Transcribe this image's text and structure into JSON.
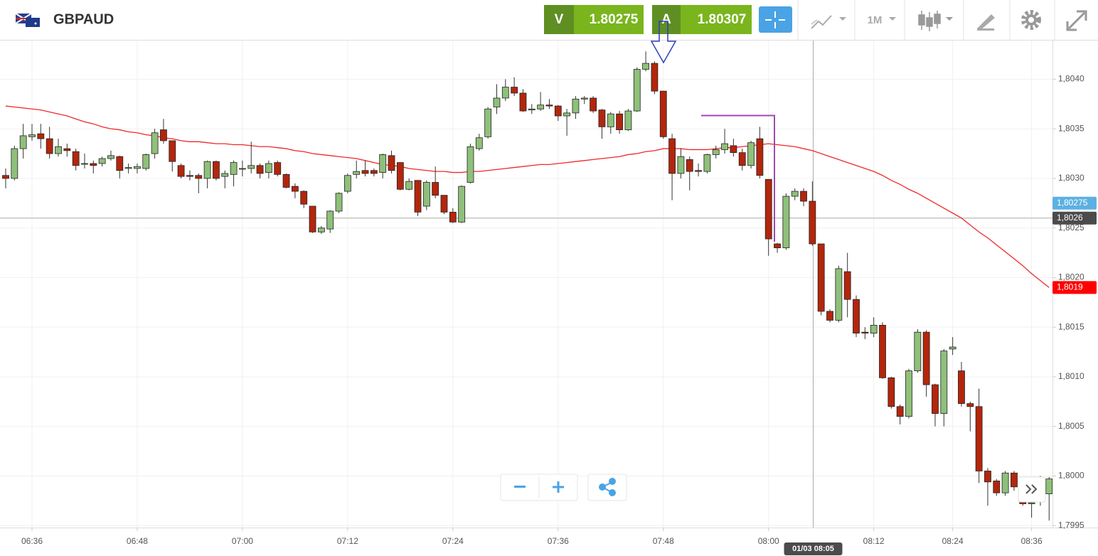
{
  "header": {
    "symbol": "GBPAUD",
    "bid_label": "V",
    "bid": 1.80275,
    "ask_label": "A",
    "ask": 1.80307,
    "timeframe": "1M"
  },
  "chart_data": {
    "type": "candlestick",
    "categories": [
      null,
      null,
      null,
      "06:36",
      null,
      null,
      null,
      null,
      null,
      null,
      null,
      null,
      null,
      null,
      null,
      "06:48",
      null,
      null,
      null,
      null,
      null,
      null,
      null,
      null,
      null,
      null,
      null,
      "07:00",
      null,
      null,
      null,
      null,
      null,
      null,
      null,
      null,
      null,
      null,
      null,
      "07:12",
      null,
      null,
      null,
      null,
      null,
      null,
      null,
      null,
      null,
      null,
      null,
      "07:24",
      null,
      null,
      null,
      null,
      null,
      null,
      null,
      null,
      null,
      null,
      null,
      "07:36",
      null,
      null,
      null,
      null,
      null,
      null,
      null,
      null,
      null,
      null,
      null,
      "07:48",
      null,
      null,
      null,
      null,
      null,
      null,
      null,
      null,
      null,
      null,
      null,
      "08:00",
      null,
      null,
      null,
      null,
      null,
      null,
      null,
      null,
      null,
      null,
      null,
      "08:12",
      null,
      null,
      null,
      null,
      null,
      null,
      null,
      null,
      "08:24",
      null,
      null,
      null,
      null,
      null,
      null,
      null,
      null,
      "08:36",
      null,
      null
    ],
    "open": [
      1.80303,
      1.803,
      1.8033,
      1.80342,
      1.80345,
      1.8034,
      1.80325,
      1.8033,
      1.80327,
      1.80315,
      1.80315,
      1.80315,
      1.8032,
      1.80322,
      1.8031,
      1.8031,
      1.8031,
      1.80325,
      1.80349,
      1.80338,
      1.80313,
      1.80303,
      1.80303,
      1.803,
      1.80317,
      1.80302,
      1.80304,
      1.8031,
      1.8031,
      1.80313,
      1.80306,
      1.80316,
      1.80304,
      1.80292,
      1.80287,
      1.80272,
      1.80246,
      1.80249,
      1.80267,
      1.80287,
      1.80304,
      1.80308,
      1.80308,
      1.80306,
      1.80323,
      1.80316,
      1.80289,
      1.80298,
      1.80272,
      1.80296,
      1.80283,
      1.80266,
      1.80256,
      1.80296,
      1.8033,
      1.80342,
      1.80372,
      1.80381,
      1.80392,
      1.80386,
      1.80369,
      1.8037,
      1.80374,
      1.80373,
      1.80363,
      1.80366,
      1.8038,
      1.80381,
      1.80369,
      1.80352,
      1.80365,
      1.80349,
      1.80368,
      1.8041,
      1.80416,
      1.80388,
      1.8034,
      1.80305,
      1.80319,
      1.80308,
      1.80307,
      1.80324,
      1.80329,
      1.80333,
      1.80326,
      1.80313,
      1.8034,
      1.80299,
      1.80234,
      1.8023,
      1.80282,
      1.80287,
      1.80277,
      1.80234,
      1.80166,
      1.80157,
      1.80206,
      1.80178,
      1.80145,
      1.80144,
      1.80152,
      1.80099,
      1.8007,
      1.8006,
      1.80106,
      1.80145,
      1.80092,
      1.80063,
      1.80128,
      1.80106,
      1.80073,
      1.8007,
      1.80005,
      1.79995,
      1.79983,
      1.80003,
      1.79976,
      1.79972,
      1.79974,
      1.79982
    ],
    "high": [
      1.8031,
      1.80333,
      1.80355,
      1.80355,
      1.80355,
      1.80352,
      1.8034,
      1.80335,
      1.8033,
      1.80325,
      1.80318,
      1.80322,
      1.80328,
      1.80323,
      1.80315,
      1.80315,
      1.80325,
      1.8035,
      1.8036,
      1.80338,
      1.80315,
      1.80308,
      1.80305,
      1.80318,
      1.80318,
      1.80308,
      1.80318,
      1.80318,
      1.80337,
      1.80315,
      1.80318,
      1.80318,
      1.80305,
      1.80295,
      1.80288,
      1.80272,
      1.80252,
      1.80268,
      1.80286,
      1.80305,
      1.80318,
      1.80318,
      1.8031,
      1.80325,
      1.80328,
      1.80316,
      1.803,
      1.80298,
      1.80298,
      1.80312,
      1.80283,
      1.8027,
      1.80293,
      1.80335,
      1.80345,
      1.80372,
      1.80395,
      1.804,
      1.80402,
      1.8039,
      1.80375,
      1.80387,
      1.8038,
      1.80374,
      1.8037,
      1.80383,
      1.80383,
      1.80383,
      1.8037,
      1.80367,
      1.80368,
      1.8037,
      1.80412,
      1.80428,
      1.80418,
      1.80388,
      1.80345,
      1.8033,
      1.80322,
      1.80315,
      1.80325,
      1.80333,
      1.8035,
      1.8034,
      1.8033,
      1.80338,
      1.80352,
      1.80299,
      1.80235,
      1.80285,
      1.8029,
      1.8029,
      1.80297,
      1.80234,
      1.80168,
      1.80212,
      1.80225,
      1.80182,
      1.8015,
      1.8016,
      1.80155,
      1.801,
      1.80072,
      1.80108,
      1.80148,
      1.80147,
      1.80093,
      1.80128,
      1.8014,
      1.80115,
      1.80075,
      1.80088,
      1.80008,
      1.79997,
      1.80005,
      1.80005,
      1.79978,
      1.79978,
      1.8,
      1.79999
    ],
    "low": [
      1.8029,
      1.80298,
      1.8032,
      1.80338,
      1.8033,
      1.8032,
      1.80322,
      1.80322,
      1.80308,
      1.8031,
      1.80305,
      1.80312,
      1.80318,
      1.803,
      1.80305,
      1.80305,
      1.80308,
      1.8032,
      1.80335,
      1.80307,
      1.803,
      1.80298,
      1.80285,
      1.8029,
      1.80298,
      1.8029,
      1.80292,
      1.80302,
      1.80305,
      1.803,
      1.803,
      1.80302,
      1.8029,
      1.8028,
      1.8027,
      1.80245,
      1.80244,
      1.80245,
      1.80265,
      1.80285,
      1.803,
      1.80302,
      1.80302,
      1.803,
      1.80305,
      1.80288,
      1.80288,
      1.80262,
      1.80268,
      1.8028,
      1.80264,
      1.80255,
      1.80255,
      1.80295,
      1.80328,
      1.8034,
      1.80365,
      1.80378,
      1.80383,
      1.80367,
      1.80365,
      1.80368,
      1.8037,
      1.80358,
      1.80343,
      1.8036,
      1.80375,
      1.80366,
      1.8034,
      1.80345,
      1.80345,
      1.80348,
      1.80367,
      1.80408,
      1.80385,
      1.8034,
      1.80278,
      1.803,
      1.80288,
      1.80302,
      1.80305,
      1.8032,
      1.80325,
      1.80322,
      1.80308,
      1.8031,
      1.803,
      1.80222,
      1.80225,
      1.80228,
      1.80278,
      1.80272,
      1.80232,
      1.80162,
      1.80155,
      1.80155,
      1.8016,
      1.8014,
      1.80138,
      1.8014,
      1.80098,
      1.80068,
      1.80052,
      1.80058,
      1.80104,
      1.8008,
      1.8005,
      1.8005,
      1.80122,
      1.8007,
      1.80045,
      1.79993,
      1.7997,
      1.7998,
      1.7998,
      1.79985,
      1.7997,
      1.79958,
      1.7997,
      1.79955
    ],
    "close": [
      1.803,
      1.8033,
      1.80343,
      1.80344,
      1.8034,
      1.80325,
      1.80332,
      1.80328,
      1.80313,
      1.80315,
      1.80313,
      1.8032,
      1.80323,
      1.80308,
      1.80311,
      1.80312,
      1.80324,
      1.80346,
      1.80338,
      1.80317,
      1.80302,
      1.80302,
      1.803,
      1.80317,
      1.803,
      1.80305,
      1.80316,
      1.8031,
      1.80313,
      1.80305,
      1.80315,
      1.80304,
      1.80291,
      1.80287,
      1.80274,
      1.80246,
      1.8025,
      1.80267,
      1.80285,
      1.80303,
      1.80307,
      1.80305,
      1.80305,
      1.80324,
      1.80308,
      1.80289,
      1.80297,
      1.80266,
      1.80296,
      1.80283,
      1.80266,
      1.80256,
      1.80292,
      1.80332,
      1.80341,
      1.8037,
      1.80381,
      1.80392,
      1.80386,
      1.80368,
      1.8037,
      1.80374,
      1.80373,
      1.80363,
      1.80366,
      1.8038,
      1.80381,
      1.80368,
      1.80352,
      1.80365,
      1.80349,
      1.80368,
      1.8041,
      1.80416,
      1.80388,
      1.80342,
      1.80305,
      1.80322,
      1.80307,
      1.80307,
      1.80324,
      1.80329,
      1.80335,
      1.80326,
      1.80313,
      1.80336,
      1.80303,
      1.80239,
      1.8023,
      1.80282,
      1.80287,
      1.80277,
      1.80234,
      1.80166,
      1.80157,
      1.80209,
      1.80178,
      1.80144,
      1.80144,
      1.80152,
      1.80099,
      1.8007,
      1.8006,
      1.80106,
      1.80145,
      1.80092,
      1.80063,
      1.80126,
      1.8013,
      1.80073,
      1.8007,
      1.80005,
      1.79994,
      1.79983,
      1.80003,
      1.79989,
      1.79972,
      1.79973,
      1.79975,
      1.79997
    ],
    "up_color": "#8fc07a",
    "down_color": "#b3260c",
    "moving_average": {
      "color": "#f0282a",
      "values": [
        1.80373,
        1.80372,
        1.80371,
        1.8037,
        1.80369,
        1.80367,
        1.80365,
        1.80363,
        1.8036,
        1.80357,
        1.80355,
        1.80352,
        1.8035,
        1.80349,
        1.80347,
        1.80346,
        1.80344,
        1.80343,
        1.80341,
        1.8034,
        1.80338,
        1.80337,
        1.80337,
        1.80336,
        1.80335,
        1.80335,
        1.80334,
        1.80334,
        1.80333,
        1.80332,
        1.80332,
        1.80331,
        1.8033,
        1.80328,
        1.80327,
        1.80325,
        1.80324,
        1.80323,
        1.80322,
        1.80321,
        1.8032,
        1.80318,
        1.80316,
        1.80314,
        1.80313,
        1.80312,
        1.8031,
        1.80309,
        1.80308,
        1.80307,
        1.80307,
        1.80306,
        1.80306,
        1.80307,
        1.80307,
        1.80308,
        1.80309,
        1.8031,
        1.80311,
        1.80312,
        1.80313,
        1.80314,
        1.80314,
        1.80315,
        1.80316,
        1.80317,
        1.80318,
        1.80319,
        1.8032,
        1.80321,
        1.80322,
        1.80324,
        1.80325,
        1.80327,
        1.80328,
        1.8033,
        1.8033,
        1.8033,
        1.80329,
        1.80329,
        1.80329,
        1.8033,
        1.80331,
        1.80331,
        1.80332,
        1.80333,
        1.80334,
        1.80335,
        1.80334,
        1.80333,
        1.80332,
        1.8033,
        1.80328,
        1.80325,
        1.80322,
        1.80319,
        1.80316,
        1.80313,
        1.8031,
        1.80307,
        1.80303,
        1.80298,
        1.80294,
        1.80289,
        1.80285,
        1.8028,
        1.80275,
        1.8027,
        1.80265,
        1.8026,
        1.80253,
        1.80246,
        1.8024,
        1.80233,
        1.80226,
        1.80219,
        1.80212,
        1.80204,
        1.80197,
        1.8019
      ]
    },
    "ylim": [
      1.79948,
      1.80439
    ],
    "yticks": [
      {
        "value": 1.7995,
        "label": "1,7995"
      },
      {
        "value": 1.8,
        "label": "1,8000"
      },
      {
        "value": 1.8005,
        "label": "1,8005"
      },
      {
        "value": 1.801,
        "label": "1,8010"
      },
      {
        "value": 1.8015,
        "label": "1,8015"
      },
      {
        "value": 1.802,
        "label": "1,8020"
      },
      {
        "value": 1.8025,
        "label": "1,8025"
      },
      {
        "value": 1.803,
        "label": "1,8030"
      },
      {
        "value": 1.8035,
        "label": "1,8035"
      },
      {
        "value": 1.804,
        "label": "1,8040"
      }
    ],
    "grid": true,
    "price_tags": [
      {
        "value": 1.80275,
        "label": "1,80275",
        "color": "#5cb0e2"
      },
      {
        "value": 1.8026,
        "label": "1,8026",
        "color": "#4b4b4b",
        "line": true
      },
      {
        "value": 1.8019,
        "label": "1,8019",
        "color": "#ff0000"
      }
    ],
    "crosshair_time": "01/03 08:05"
  }
}
